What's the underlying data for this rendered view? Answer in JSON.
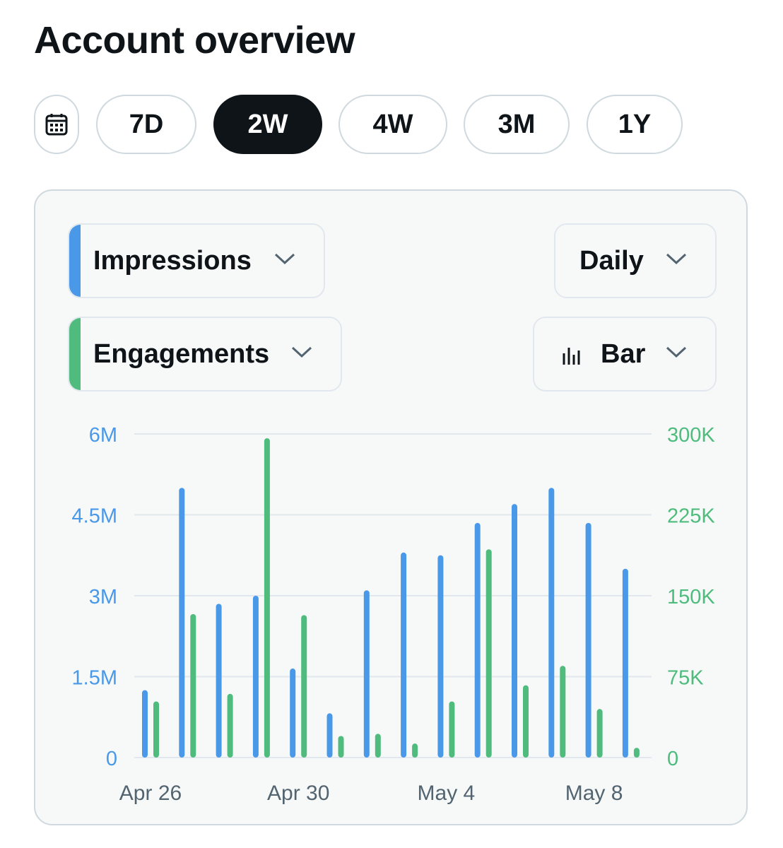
{
  "page": {
    "title": "Account overview"
  },
  "range": {
    "calendar_icon": "calendar-icon",
    "options": [
      "7D",
      "2W",
      "4W",
      "3M",
      "1Y"
    ],
    "selected": "2W"
  },
  "controls": {
    "metric1": {
      "label": "Impressions",
      "color": "#4a99e9",
      "icon": "chevron-down-icon"
    },
    "metric2": {
      "label": "Engagements",
      "color": "#4fbc7e",
      "icon": "chevron-down-icon"
    },
    "interval": {
      "label": "Daily",
      "icon": "chevron-down-icon"
    },
    "chart_type": {
      "label": "Bar",
      "icon": "bar-chart-icon"
    }
  },
  "chart_data": {
    "type": "bar",
    "categories": [
      "Apr 26",
      "Apr 27",
      "Apr 28",
      "Apr 29",
      "Apr 30",
      "May 1",
      "May 2",
      "May 3",
      "May 4",
      "May 5",
      "May 6",
      "May 7",
      "May 8",
      "May 9"
    ],
    "x_tick_labels": [
      "Apr 26",
      "Apr 30",
      "May 4",
      "May 8"
    ],
    "series": [
      {
        "name": "Impressions",
        "color": "#4a99e9",
        "axis": "left",
        "values": [
          1250000,
          5000000,
          2850000,
          3000000,
          1650000,
          820000,
          3100000,
          3800000,
          3750000,
          4350000,
          4700000,
          5000000,
          4350000,
          3500000
        ]
      },
      {
        "name": "Engagements",
        "color": "#4fbc7e",
        "axis": "right",
        "values": [
          52000,
          133000,
          59000,
          296000,
          132000,
          20000,
          22000,
          13000,
          52000,
          193000,
          67000,
          85000,
          45000,
          9000
        ]
      }
    ],
    "y_left": {
      "ylim": [
        0,
        6000000
      ],
      "ticks": [
        "0",
        "1.5M",
        "3M",
        "4.5M",
        "6M"
      ],
      "color": "#4a99e9"
    },
    "y_right": {
      "ylim": [
        0,
        300000
      ],
      "ticks": [
        "0",
        "75K",
        "150K",
        "225K",
        "300K"
      ],
      "color": "#4fbc7e"
    },
    "grid": true
  }
}
